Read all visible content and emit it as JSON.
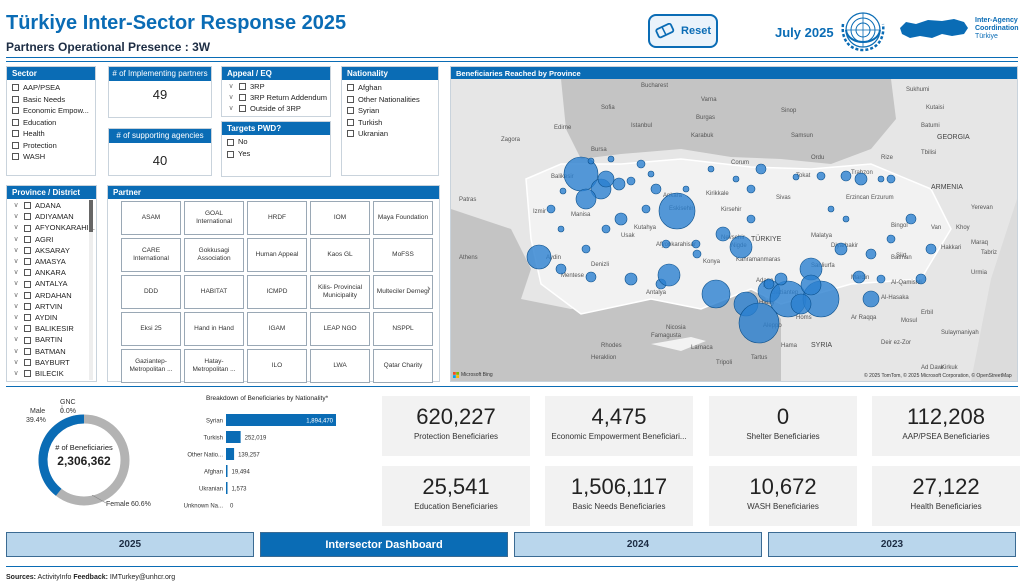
{
  "header": {
    "title": "Türkiye Inter-Sector Response 2025",
    "subtitle": "Partners Operational Presence : 3W",
    "reset_label": "Reset",
    "month": "July 2025",
    "iac_line1": "Inter-Agency",
    "iac_line2": "Coordination",
    "iac_line3": "Türkiye"
  },
  "colors": {
    "accent": "#0a6cb5",
    "bubble": "#2a7fcf",
    "nav_inactive": "#b9d6ec"
  },
  "sector": {
    "title": "Sector",
    "items": [
      "AAP/PSEA",
      "Basic Needs",
      "Economic Empow...",
      "Education",
      "Health",
      "Protection",
      "WASH"
    ]
  },
  "implementing": {
    "title": "# of Implementing partners",
    "value": "49"
  },
  "supporting": {
    "title": "# of supporting agencies",
    "value": "40"
  },
  "appeal": {
    "title": "Appeal / EQ",
    "items": [
      "3RP",
      "3RP Return Addendum",
      "Outside of 3RP"
    ]
  },
  "pwd": {
    "title": "Targets PWD?",
    "items": [
      "No",
      "Yes"
    ]
  },
  "nationality": {
    "title": "Nationality",
    "items": [
      "Afghan",
      "Other Nationalities",
      "Syrian",
      "Turkish",
      "Ukranian"
    ]
  },
  "province": {
    "title": "Province / District",
    "items": [
      "ADANA",
      "ADIYAMAN",
      "AFYONKARAHI...",
      "AGRI",
      "AKSARAY",
      "AMASYA",
      "ANKARA",
      "ANTALYA",
      "ARDAHAN",
      "ARTVIN",
      "AYDIN",
      "BALIKESIR",
      "BARTIN",
      "BATMAN",
      "BAYBURT",
      "BILECIK"
    ]
  },
  "partner": {
    "title": "Partner",
    "items": [
      "ASAM",
      "GOAL International",
      "HRDF",
      "IOM",
      "Maya Foundation",
      "CARE International",
      "Gokkusagi Association",
      "Human Appeal",
      "Kaos GL",
      "MoFSS",
      "DDD",
      "HABITAT",
      "ICMPD",
      "Kilis- Provincial Municipality",
      "Multeciler Dernegi",
      "Eksi 25",
      "Hand in Hand",
      "IGAM",
      "LEAP NGO",
      "NSPPL",
      "Gaziantep-Metropolitan ...",
      "Hatay-Metropolitan ...",
      "ILO",
      "LWA",
      "Qatar Charity"
    ]
  },
  "map": {
    "title": "Beneficiaries Reached by Province",
    "attribution": "© 2025 TomTom, © 2025 Microsoft Corporation, © OpenStreetMap",
    "brand": "Microsoft Bing",
    "labels": [
      "Bucharest",
      "Varna",
      "Sofia",
      "Burgas",
      "Edirne",
      "Zagora",
      "Istanbul",
      "Bursa",
      "Balikesir",
      "Manisa",
      "Izmir",
      "Aydin",
      "Denizli",
      "Mentese",
      "Usak",
      "Afyonkarahisar",
      "Kutahya",
      "Eskisehir",
      "Ankara",
      "Kirikkale",
      "Kirsehir",
      "Nevsehir",
      "Konya",
      "Nigde",
      "Kahramanmaras",
      "Adana",
      "Antalya",
      "Samsun",
      "Sinop",
      "Karabuk",
      "Corum",
      "Tokat",
      "Sivas",
      "Trabzon",
      "Rize",
      "Ordu",
      "Erzincan",
      "Erzurum",
      "Bingol",
      "Malatya",
      "Diyarbakir",
      "Sanliurfa",
      "Batman",
      "Mardin",
      "Siirt",
      "Van",
      "Hakkari",
      "Gaziantep",
      "Kilis",
      "Hatay",
      "Aleppo",
      "Al-Hasaka",
      "Al-Qamishli",
      "Mosul",
      "Erbil",
      "Hama",
      "Homs",
      "Tartus",
      "Tripoli",
      "SYRIA",
      "TÜRKIYE",
      "GEORGIA",
      "Tbilisi",
      "ARMENIA",
      "Yerevan",
      "Tabriz",
      "Maraq",
      "Urmia",
      "Khoy",
      "Kutaisi",
      "Batumi",
      "Sukhumi",
      "Athens",
      "Patras",
      "Rhodes",
      "Heraklion",
      "Famagusta",
      "Nicosia",
      "Larnaca",
      "Sulaymaniyah",
      "Kirkuk",
      "Ad Dawr",
      "Ar Raqqa",
      "Deir ez-Zor"
    ],
    "province_label_count": 49
  },
  "donut": {
    "center_label": "# of Beneficiaries",
    "center_value": "2,306,362",
    "gnc_label": "GNC",
    "gnc_pct": "0.0%",
    "male_label": "Male",
    "male_pct": "39.4%",
    "female_label": "Female",
    "female_pct": "60.6%",
    "male_fraction": 0.394,
    "female_fraction": 0.606
  },
  "chart_data": {
    "type": "bar",
    "title": "Breakdown of Beneficiaries by Nationality*",
    "categories": [
      "Syrian",
      "Turkish",
      "Other Natio...",
      "Afghan",
      "Ukranian",
      "Unknown Na..."
    ],
    "values": [
      1894470,
      252019,
      139257,
      19494,
      1573,
      0
    ],
    "value_labels": [
      "1,894,470",
      "252,019",
      "139,257",
      "19,494",
      "1,573",
      "0"
    ],
    "xlim": [
      0,
      1894470
    ]
  },
  "cards": [
    {
      "value": "620,227",
      "label": "Protection Beneficiaries"
    },
    {
      "value": "4,475",
      "label": "Economic Empowerment Beneficiari..."
    },
    {
      "value": "0",
      "label": "Shelter Beneficiaries"
    },
    {
      "value": "112,208",
      "label": "AAP/PSEA Beneficiaries"
    },
    {
      "value": "25,541",
      "label": "Education Beneficiaries"
    },
    {
      "value": "1,506,117",
      "label": "Basic Needs Beneficiaries"
    },
    {
      "value": "10,672",
      "label": "WASH Beneficiaries"
    },
    {
      "value": "27,122",
      "label": "Health Beneficiaries"
    }
  ],
  "nav": {
    "y2025": "2025",
    "intersector": "Intersector Dashboard",
    "y2024": "2024",
    "y2023": "2023"
  },
  "footer": {
    "sources_label": "Sources:",
    "sources": "ActivityInfo",
    "feedback_label": "Feedback:",
    "feedback": "IMTurkey@unhcr.org"
  }
}
